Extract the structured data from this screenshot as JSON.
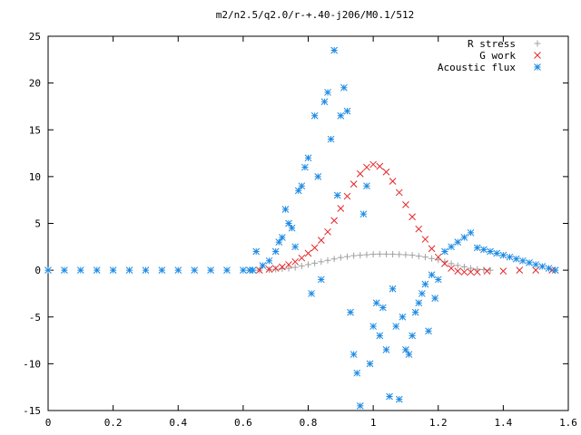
{
  "chart_data": {
    "type": "scatter",
    "title": "m2/n2.5/q2.0/r-+.40-j206/M0.1/512",
    "xlabel": "",
    "ylabel": "",
    "xlim": [
      0,
      1.6
    ],
    "ylim": [
      -15,
      25
    ],
    "x_ticks": [
      "0",
      "0.2",
      "0.4",
      "0.6",
      "0.8",
      "1",
      "1.2",
      "1.4",
      "1.6"
    ],
    "y_ticks": [
      "-15",
      "-10",
      "-5",
      "0",
      "5",
      "10",
      "15",
      "20",
      "25"
    ],
    "x_tick_values": [
      0,
      0.2,
      0.4,
      0.6,
      0.8,
      1.0,
      1.2,
      1.4,
      1.6
    ],
    "y_tick_values": [
      -15,
      -10,
      -5,
      0,
      5,
      10,
      15,
      20,
      25
    ],
    "grid": false,
    "legend_position": "top-right",
    "series": [
      {
        "name": "R stress",
        "marker": "plus",
        "color": "#a0a0a0",
        "x": [
          0.65,
          0.68,
          0.7,
          0.72,
          0.74,
          0.76,
          0.78,
          0.8,
          0.82,
          0.84,
          0.86,
          0.88,
          0.9,
          0.92,
          0.94,
          0.96,
          0.98,
          1.0,
          1.02,
          1.04,
          1.06,
          1.08,
          1.1,
          1.12,
          1.14,
          1.16,
          1.18,
          1.2,
          1.22,
          1.24,
          1.26,
          1.28,
          1.3,
          1.32,
          1.34,
          1.36
        ],
        "y": [
          0.0,
          0.05,
          0.1,
          0.15,
          0.2,
          0.3,
          0.45,
          0.6,
          0.75,
          0.9,
          1.05,
          1.2,
          1.35,
          1.45,
          1.55,
          1.6,
          1.65,
          1.7,
          1.72,
          1.72,
          1.7,
          1.68,
          1.65,
          1.6,
          1.5,
          1.4,
          1.25,
          1.1,
          0.9,
          0.7,
          0.5,
          0.35,
          0.2,
          0.1,
          0.05,
          0.0
        ]
      },
      {
        "name": "G work",
        "marker": "cross",
        "color": "#e4262a",
        "x": [
          0.65,
          0.68,
          0.7,
          0.72,
          0.74,
          0.76,
          0.78,
          0.8,
          0.82,
          0.84,
          0.86,
          0.88,
          0.9,
          0.92,
          0.94,
          0.96,
          0.98,
          1.0,
          1.02,
          1.04,
          1.06,
          1.08,
          1.1,
          1.12,
          1.14,
          1.16,
          1.18,
          1.2,
          1.22,
          1.24,
          1.26,
          1.28,
          1.3,
          1.32,
          1.35,
          1.4,
          1.45,
          1.5,
          1.55
        ],
        "y": [
          0.0,
          0.1,
          0.2,
          0.35,
          0.6,
          0.9,
          1.3,
          1.8,
          2.4,
          3.2,
          4.1,
          5.3,
          6.6,
          7.9,
          9.2,
          10.3,
          11.0,
          11.3,
          11.1,
          10.5,
          9.5,
          8.3,
          7.0,
          5.7,
          4.4,
          3.3,
          2.3,
          1.4,
          0.7,
          0.2,
          -0.1,
          -0.2,
          -0.2,
          -0.2,
          -0.1,
          -0.1,
          0.0,
          0.0,
          0.0
        ]
      },
      {
        "name": "Acoustic flux",
        "marker": "star",
        "color": "#1b8ae3",
        "x": [
          0.0,
          0.05,
          0.1,
          0.15,
          0.2,
          0.25,
          0.3,
          0.35,
          0.4,
          0.45,
          0.5,
          0.55,
          0.6,
          0.62,
          0.63,
          0.64,
          0.66,
          0.68,
          0.7,
          0.71,
          0.72,
          0.73,
          0.74,
          0.75,
          0.76,
          0.77,
          0.78,
          0.79,
          0.8,
          0.81,
          0.82,
          0.83,
          0.84,
          0.85,
          0.86,
          0.87,
          0.88,
          0.89,
          0.9,
          0.91,
          0.92,
          0.93,
          0.94,
          0.95,
          0.96,
          0.97,
          0.98,
          0.99,
          1.0,
          1.01,
          1.02,
          1.03,
          1.04,
          1.05,
          1.06,
          1.07,
          1.08,
          1.09,
          1.1,
          1.11,
          1.12,
          1.13,
          1.14,
          1.15,
          1.16,
          1.17,
          1.18,
          1.19,
          1.2,
          1.22,
          1.24,
          1.26,
          1.28,
          1.3,
          1.32,
          1.34,
          1.36,
          1.38,
          1.4,
          1.42,
          1.44,
          1.46,
          1.48,
          1.5,
          1.52,
          1.54,
          1.56
        ],
        "y": [
          0,
          0,
          0,
          0,
          0,
          0,
          0,
          0,
          0,
          0,
          0,
          0,
          0,
          0,
          0,
          2.0,
          0.5,
          1.0,
          2.0,
          3.0,
          3.5,
          6.5,
          5.0,
          4.5,
          2.5,
          8.5,
          9.0,
          11.0,
          12.0,
          -2.5,
          16.5,
          10.0,
          -1.0,
          18.0,
          19.0,
          14.0,
          23.5,
          8.0,
          16.5,
          19.5,
          17.0,
          -4.5,
          -9.0,
          -11.0,
          -14.5,
          6.0,
          9.0,
          -10.0,
          -6.0,
          -3.5,
          -7.0,
          -4.0,
          -8.5,
          -13.5,
          -2.0,
          -6.0,
          -13.8,
          -5.0,
          -8.5,
          -9.0,
          -7.0,
          -4.5,
          -3.5,
          -2.5,
          -1.5,
          -6.5,
          -0.5,
          -3.0,
          -1.0,
          2.0,
          2.5,
          3.0,
          3.5,
          4.0,
          2.4,
          2.2,
          2.0,
          1.8,
          1.6,
          1.4,
          1.2,
          1.0,
          0.8,
          0.6,
          0.4,
          0.2,
          0.0
        ]
      }
    ]
  }
}
